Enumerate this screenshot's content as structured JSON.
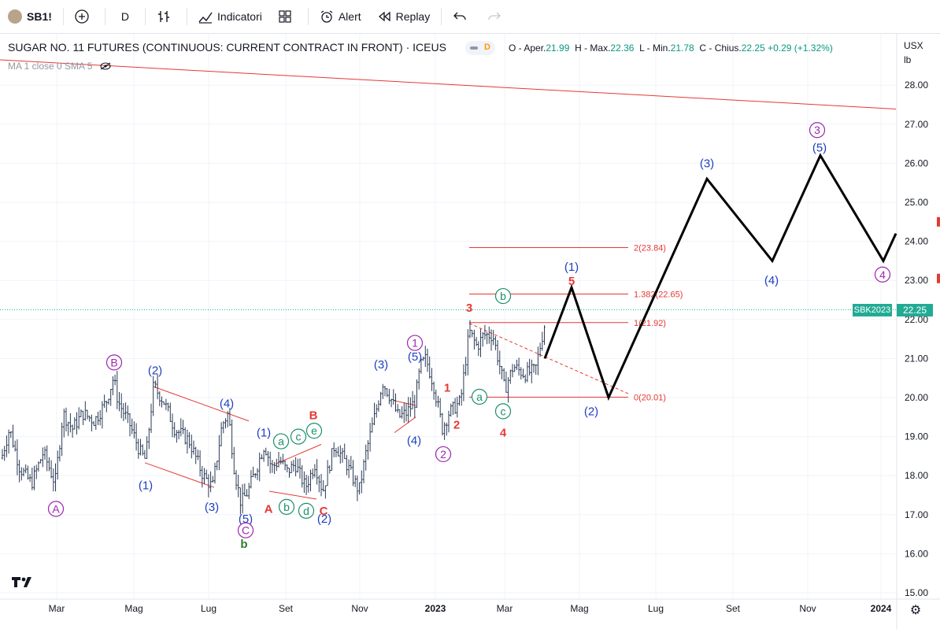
{
  "toolbar": {
    "symbol": "SB1!",
    "interval": "D",
    "indicators_label": "Indicatori",
    "alert_label": "Alert",
    "replay_label": "Replay"
  },
  "legend": {
    "title": "SUGAR NO. 11 FUTURES (CONTINUOUS: CURRENT CONTRACT IN FRONT) · ICEUS",
    "badge": "D",
    "o_label": "O - Aper.",
    "o": "21.99",
    "h_label": "H - Max.",
    "h": "22.36",
    "l_label": "L - Min.",
    "l": "21.78",
    "c_label": "C - Chius.",
    "c": "22.25",
    "change": "+0.29 (+1.32%)",
    "ma": "MA 1 close 0 SMA 5"
  },
  "currency": "USX",
  "unit": "lb",
  "last_label": "SBK2023",
  "last_price": "22.25",
  "colors": {
    "up": "#089981",
    "candle": "#2a3a55",
    "accent_red": "#e53935",
    "wave_blue": "#1e3fbf",
    "wave_purple": "#9c27b0",
    "wave_green": "#1b8f6a",
    "wave_darkgreen": "#2e7d32",
    "last_line": "#22ab94"
  },
  "chart_data": {
    "type": "line",
    "title": "SUGAR NO. 11 FUTURES (CONTINUOUS: CURRENT CONTRACT IN FRONT) · ICEUS",
    "ylim": [
      14.8,
      29.0
    ],
    "y_ticks": [
      "15.00",
      "16.00",
      "17.00",
      "18.00",
      "19.00",
      "20.00",
      "21.00",
      "22.00",
      "23.00",
      "24.00",
      "25.00",
      "26.00",
      "27.00",
      "28.00"
    ],
    "x_ticks": [
      "Mar",
      "Mag",
      "Lug",
      "Set",
      "Nov",
      "2023",
      "Mar",
      "Mag",
      "Lug",
      "Set",
      "Nov",
      "2024"
    ],
    "price_anchors": [
      [
        0,
        18.3
      ],
      [
        12,
        19.2
      ],
      [
        25,
        18.2
      ],
      [
        40,
        17.8
      ],
      [
        55,
        18.6
      ],
      [
        70,
        17.8
      ],
      [
        80,
        19.6
      ],
      [
        92,
        19.2
      ],
      [
        105,
        19.6
      ],
      [
        120,
        19.4
      ],
      [
        135,
        19.9
      ],
      [
        144,
        20.5
      ],
      [
        150,
        19.9
      ],
      [
        165,
        19.3
      ],
      [
        178,
        18.6
      ],
      [
        185,
        18.4
      ],
      [
        195,
        20.3
      ],
      [
        208,
        19.9
      ],
      [
        222,
        19.2
      ],
      [
        240,
        18.9
      ],
      [
        258,
        18.0
      ],
      [
        270,
        17.7
      ],
      [
        282,
        19.3
      ],
      [
        290,
        19.6
      ],
      [
        298,
        18.1
      ],
      [
        306,
        17.3
      ],
      [
        315,
        17.6
      ],
      [
        324,
        18.1
      ],
      [
        336,
        18.8
      ],
      [
        345,
        18.2
      ],
      [
        355,
        18.4
      ],
      [
        365,
        18.1
      ],
      [
        375,
        18.3
      ],
      [
        388,
        17.7
      ],
      [
        400,
        18.3
      ],
      [
        410,
        17.6
      ],
      [
        425,
        18.8
      ],
      [
        440,
        18.3
      ],
      [
        456,
        17.6
      ],
      [
        465,
        18.6
      ],
      [
        478,
        19.7
      ],
      [
        486,
        20.4
      ],
      [
        496,
        20.0
      ],
      [
        506,
        19.5
      ],
      [
        516,
        19.6
      ],
      [
        527,
        19.9
      ],
      [
        534,
        20.8
      ],
      [
        541,
        21.0
      ],
      [
        551,
        20.3
      ],
      [
        562,
        19.2
      ],
      [
        570,
        19.6
      ],
      [
        585,
        19.9
      ],
      [
        596,
        21.7
      ],
      [
        606,
        21.3
      ],
      [
        614,
        21.6
      ],
      [
        626,
        21.6
      ],
      [
        636,
        20.7
      ],
      [
        641,
        20.2
      ],
      [
        652,
        20.8
      ],
      [
        666,
        20.6
      ],
      [
        680,
        20.7
      ],
      [
        692,
        21.9
      ]
    ],
    "projection": [
      [
        692,
        21.0
      ],
      [
        726,
        22.82
      ],
      [
        773,
        20.0
      ],
      [
        898,
        25.6
      ],
      [
        981,
        23.5
      ],
      [
        1042,
        26.2
      ],
      [
        1122,
        23.5
      ],
      [
        1138,
        24.2
      ]
    ],
    "trendline": {
      "from": [
        0,
        28.65
      ],
      "to": [
        1138,
        27.39
      ]
    },
    "fib_levels": [
      {
        "label": "2(23.84)",
        "value": 23.84
      },
      {
        "label": "1.382(22.65)",
        "value": 22.65
      },
      {
        "label": "1(21.92)",
        "value": 21.92
      },
      {
        "label": "0(20.01)",
        "value": 20.01
      }
    ],
    "channels": [
      {
        "from": [
          195,
          20.28
        ],
        "to": [
          316,
          19.4
        ]
      },
      {
        "from": [
          184,
          18.33
        ],
        "to": [
          272,
          17.7
        ]
      },
      {
        "from": [
          350,
          18.3
        ],
        "to": [
          408,
          18.8
        ]
      },
      {
        "from": [
          342,
          17.6
        ],
        "to": [
          402,
          17.4
        ]
      },
      {
        "from": [
          501,
          19.92
        ],
        "to": [
          528,
          19.8
        ]
      },
      {
        "from": [
          501,
          19.1
        ],
        "to": [
          528,
          19.5
        ]
      }
    ],
    "projection_dashed": {
      "from": [
        596,
        21.9
      ],
      "to": [
        798,
        20.1
      ]
    },
    "wave_labels": [
      {
        "text": "A",
        "x": 71,
        "y": 17.15,
        "style": "circle",
        "color": "purple"
      },
      {
        "text": "B",
        "x": 145,
        "y": 20.9,
        "style": "circle",
        "color": "purple"
      },
      {
        "text": "(2)",
        "x": 197,
        "y": 20.7,
        "style": "plain",
        "color": "blue"
      },
      {
        "text": "(1)",
        "x": 185,
        "y": 17.75,
        "style": "plain",
        "color": "blue"
      },
      {
        "text": "(3)",
        "x": 269,
        "y": 17.2,
        "style": "plain",
        "color": "blue"
      },
      {
        "text": "(4)",
        "x": 288,
        "y": 19.85,
        "style": "plain",
        "color": "blue"
      },
      {
        "text": "(5)",
        "x": 312,
        "y": 16.9,
        "style": "plain",
        "color": "blue"
      },
      {
        "text": "C",
        "x": 312,
        "y": 16.6,
        "style": "circle",
        "color": "purple"
      },
      {
        "text": "b",
        "x": 310,
        "y": 16.25,
        "style": "plain",
        "color": "darkgreen"
      },
      {
        "text": "(1)",
        "x": 335,
        "y": 19.1,
        "style": "plain",
        "color": "blue"
      },
      {
        "text": "a",
        "x": 357,
        "y": 18.88,
        "style": "circle",
        "color": "green"
      },
      {
        "text": "c",
        "x": 379,
        "y": 19.0,
        "style": "circle",
        "color": "green"
      },
      {
        "text": "e",
        "x": 399,
        "y": 19.15,
        "style": "circle",
        "color": "green"
      },
      {
        "text": "B",
        "x": 398,
        "y": 19.55,
        "style": "plain",
        "color": "red"
      },
      {
        "text": "A",
        "x": 341,
        "y": 17.15,
        "style": "plain",
        "color": "red"
      },
      {
        "text": "b",
        "x": 364,
        "y": 17.2,
        "style": "circle",
        "color": "green"
      },
      {
        "text": "d",
        "x": 389,
        "y": 17.1,
        "style": "circle",
        "color": "green"
      },
      {
        "text": "C",
        "x": 411,
        "y": 17.1,
        "style": "plain",
        "color": "red"
      },
      {
        "text": "(2)",
        "x": 412,
        "y": 16.9,
        "style": "plain",
        "color": "blue"
      },
      {
        "text": "(3)",
        "x": 484,
        "y": 20.85,
        "style": "plain",
        "color": "blue"
      },
      {
        "text": "(4)",
        "x": 526,
        "y": 18.9,
        "style": "plain",
        "color": "blue"
      },
      {
        "text": "(5)",
        "x": 527,
        "y": 21.05,
        "style": "plain",
        "color": "blue"
      },
      {
        "text": "1",
        "x": 527,
        "y": 21.4,
        "style": "circle",
        "color": "purple"
      },
      {
        "text": "2",
        "x": 563,
        "y": 18.55,
        "style": "circle",
        "color": "purple"
      },
      {
        "text": "1",
        "x": 568,
        "y": 20.25,
        "style": "plain",
        "color": "red"
      },
      {
        "text": "2",
        "x": 580,
        "y": 19.3,
        "style": "plain",
        "color": "red"
      },
      {
        "text": "3",
        "x": 596,
        "y": 22.3,
        "style": "plain",
        "color": "red"
      },
      {
        "text": "a",
        "x": 609,
        "y": 20.02,
        "style": "circle",
        "color": "green"
      },
      {
        "text": "b",
        "x": 639,
        "y": 22.6,
        "style": "circle",
        "color": "green"
      },
      {
        "text": "c",
        "x": 639,
        "y": 19.65,
        "style": "circle",
        "color": "green"
      },
      {
        "text": "4",
        "x": 639,
        "y": 19.1,
        "style": "plain",
        "color": "red"
      },
      {
        "text": "(1)",
        "x": 726,
        "y": 23.35,
        "style": "plain",
        "color": "blue"
      },
      {
        "text": "5",
        "x": 726,
        "y": 22.98,
        "style": "plain",
        "color": "red"
      },
      {
        "text": "(2)",
        "x": 751,
        "y": 19.65,
        "style": "plain",
        "color": "blue"
      },
      {
        "text": "(3)",
        "x": 898,
        "y": 26.0,
        "style": "plain",
        "color": "blue"
      },
      {
        "text": "(4)",
        "x": 980,
        "y": 23.0,
        "style": "plain",
        "color": "blue"
      },
      {
        "text": "3",
        "x": 1038,
        "y": 26.85,
        "style": "circle",
        "color": "purple"
      },
      {
        "text": "(5)",
        "x": 1041,
        "y": 26.4,
        "style": "plain",
        "color": "blue"
      },
      {
        "text": "4",
        "x": 1121,
        "y": 23.15,
        "style": "circle",
        "color": "purple"
      }
    ]
  }
}
